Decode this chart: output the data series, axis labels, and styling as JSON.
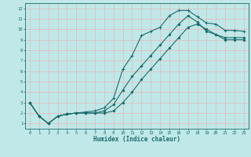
{
  "xlabel": "Humidex (Indice chaleur)",
  "xlim": [
    -0.5,
    23.5
  ],
  "ylim": [
    0.5,
    12.5
  ],
  "xticks": [
    0,
    1,
    2,
    3,
    4,
    5,
    6,
    7,
    8,
    9,
    10,
    11,
    12,
    13,
    14,
    15,
    16,
    17,
    18,
    19,
    20,
    21,
    22,
    23
  ],
  "yticks": [
    1,
    2,
    3,
    4,
    5,
    6,
    7,
    8,
    9,
    10,
    11,
    12
  ],
  "bg_color": "#c0e8e8",
  "plot_bg_color": "#c0e8e8",
  "grid_color": "#e8b8b8",
  "line_color": "#1a6b6b",
  "line1_x": [
    0,
    1,
    2,
    3,
    4,
    5,
    6,
    7,
    8,
    9,
    10,
    11,
    12,
    13,
    14,
    15,
    16,
    17,
    18,
    19,
    20,
    21,
    22,
    23
  ],
  "line1_y": [
    3.0,
    1.7,
    1.0,
    1.7,
    1.9,
    2.0,
    2.1,
    2.2,
    2.5,
    3.4,
    6.2,
    7.5,
    9.4,
    9.8,
    10.2,
    11.3,
    11.8,
    11.8,
    11.2,
    10.6,
    10.5,
    9.9,
    9.9,
    9.8
  ],
  "line2_x": [
    0,
    1,
    2,
    3,
    4,
    5,
    6,
    7,
    8,
    9,
    10,
    11,
    12,
    13,
    14,
    15,
    16,
    17,
    18,
    19,
    20,
    21,
    22,
    23
  ],
  "line2_y": [
    3.0,
    1.7,
    1.0,
    1.7,
    1.9,
    2.0,
    2.0,
    2.0,
    2.2,
    2.8,
    4.2,
    5.5,
    6.5,
    7.5,
    8.5,
    9.5,
    10.5,
    11.3,
    10.7,
    9.8,
    9.5,
    9.0,
    9.0,
    9.0
  ],
  "line3_x": [
    0,
    1,
    2,
    3,
    4,
    5,
    6,
    7,
    8,
    9,
    10,
    11,
    12,
    13,
    14,
    15,
    16,
    17,
    18,
    19,
    20,
    21,
    22,
    23
  ],
  "line3_y": [
    3.0,
    1.7,
    1.0,
    1.7,
    1.9,
    2.0,
    2.0,
    2.0,
    2.0,
    2.2,
    3.0,
    4.0,
    5.2,
    6.2,
    7.2,
    8.2,
    9.2,
    10.2,
    10.5,
    10.0,
    9.5,
    9.2,
    9.2,
    9.2
  ]
}
